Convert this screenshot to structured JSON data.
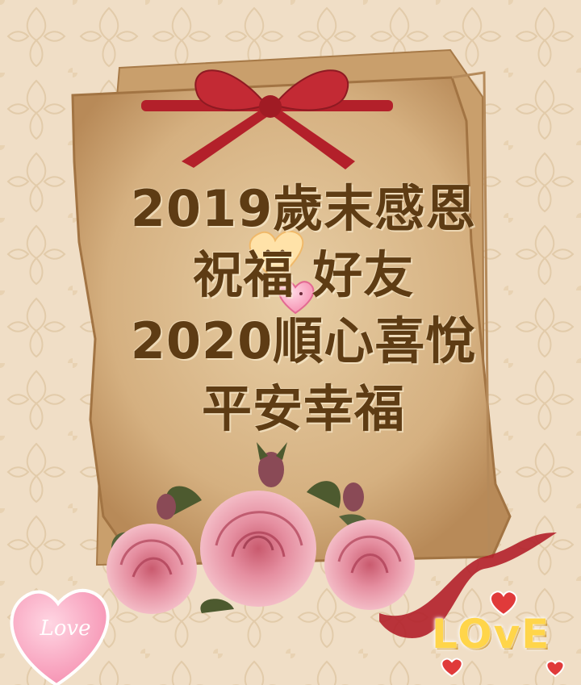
{
  "greeting": {
    "line1": "2019歲末感恩",
    "line2": "祝福    好友",
    "line3": "2020順心喜悅",
    "line4": "平安幸福"
  },
  "stickers": {
    "heart_script": "Love",
    "gold_word": "LOvE"
  },
  "colors": {
    "background": "#efdcc3",
    "parchment": "#d9b585",
    "text": "#5e3c14",
    "ribbon": "#b3202a",
    "rose": "#e99aa6",
    "gold": "#ffd54a"
  }
}
